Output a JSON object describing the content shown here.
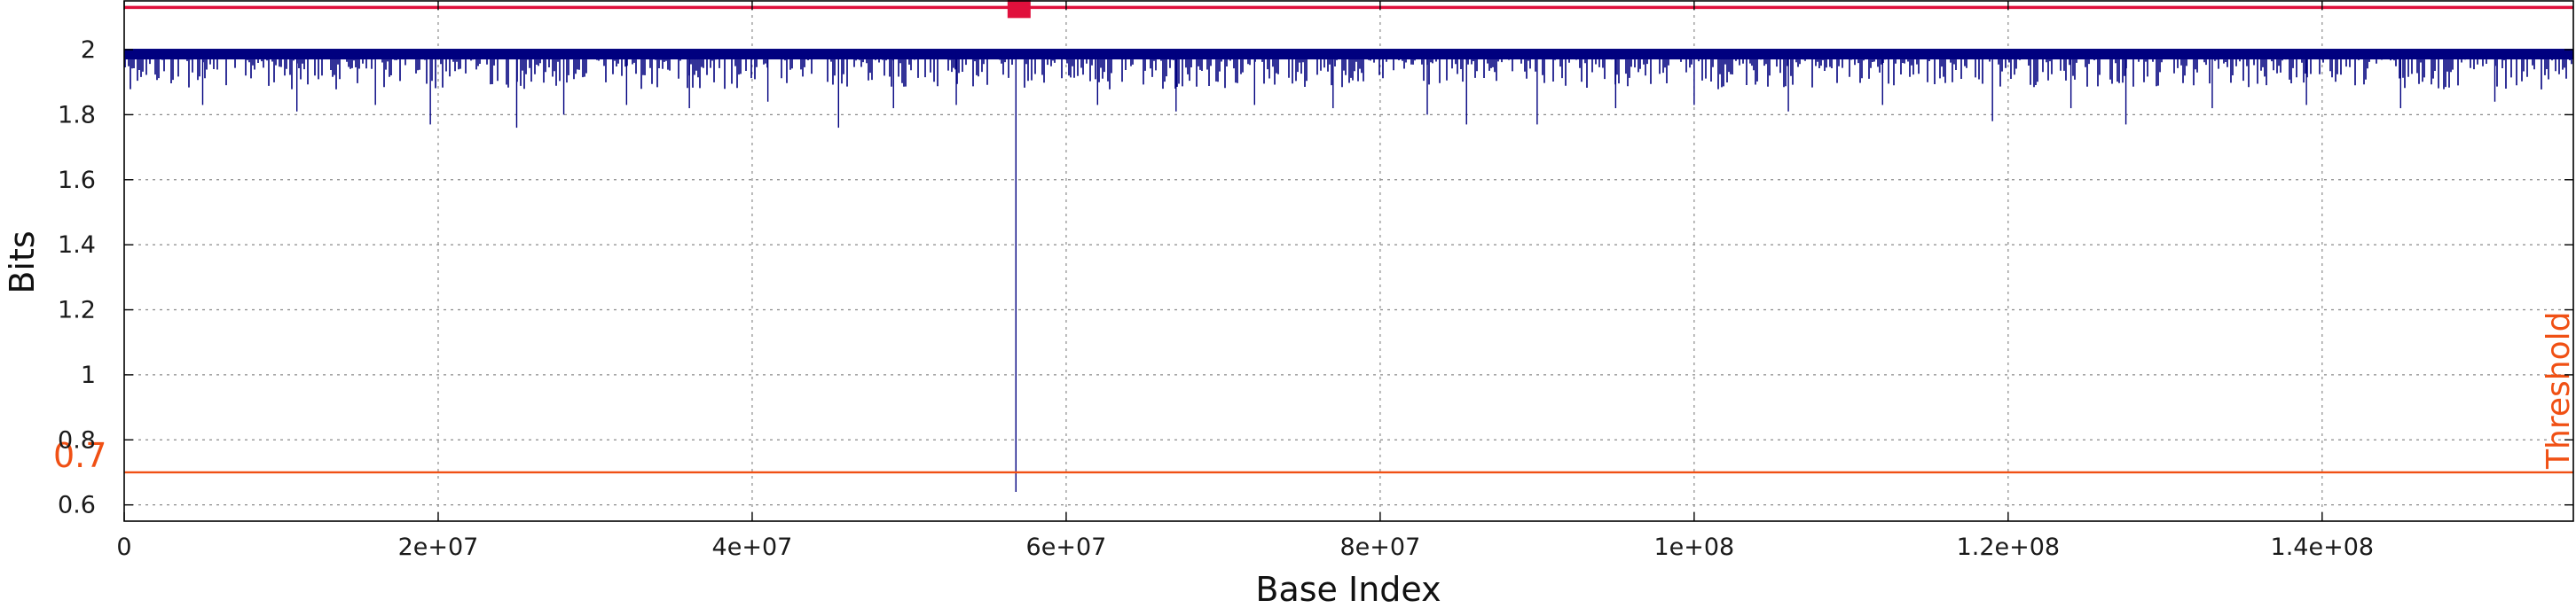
{
  "chart_data": {
    "type": "line",
    "title": "",
    "xlabel": "Base Index",
    "ylabel": "Bits",
    "xlim": [
      0,
      156000000
    ],
    "ylim": [
      0.55,
      2.15
    ],
    "grid": true,
    "x_ticks": [
      {
        "value": 0,
        "label": "0"
      },
      {
        "value": 20000000,
        "label": "2e+07"
      },
      {
        "value": 40000000,
        "label": "4e+07"
      },
      {
        "value": 60000000,
        "label": "6e+07"
      },
      {
        "value": 80000000,
        "label": "8e+07"
      },
      {
        "value": 100000000,
        "label": "1e+08"
      },
      {
        "value": 120000000,
        "label": "1.2e+08"
      },
      {
        "value": 140000000,
        "label": "1.4e+08"
      }
    ],
    "y_ticks": [
      {
        "value": 0.6,
        "label": "0.6"
      },
      {
        "value": 0.8,
        "label": "0.8"
      },
      {
        "value": 1.0,
        "label": "1"
      },
      {
        "value": 1.2,
        "label": "1.2"
      },
      {
        "value": 1.4,
        "label": "1.4"
      },
      {
        "value": 1.6,
        "label": "1.6"
      },
      {
        "value": 1.8,
        "label": "1.8"
      },
      {
        "value": 2.0,
        "label": "2"
      }
    ],
    "threshold": {
      "value": 0.7,
      "value_label": "0.7",
      "label": "Threshold",
      "color": "#f05014"
    },
    "top_line": {
      "value": 2.13,
      "color": "#e0103c"
    },
    "marker": {
      "x": 57000000,
      "y": 2.13,
      "color": "#e0103c"
    },
    "series": [
      {
        "color": "#00007f",
        "baseline_max": 2.0,
        "typical_min": 1.85,
        "dips": [
          {
            "x": 5000000,
            "y": 1.83
          },
          {
            "x": 11000000,
            "y": 1.81
          },
          {
            "x": 16000000,
            "y": 1.83
          },
          {
            "x": 19500000,
            "y": 1.77
          },
          {
            "x": 25000000,
            "y": 1.76
          },
          {
            "x": 28000000,
            "y": 1.8
          },
          {
            "x": 32000000,
            "y": 1.83
          },
          {
            "x": 36000000,
            "y": 1.82
          },
          {
            "x": 41000000,
            "y": 1.84
          },
          {
            "x": 45500000,
            "y": 1.76
          },
          {
            "x": 49000000,
            "y": 1.82
          },
          {
            "x": 53000000,
            "y": 1.83
          },
          {
            "x": 56800000,
            "y": 0.64
          },
          {
            "x": 62000000,
            "y": 1.83
          },
          {
            "x": 67000000,
            "y": 1.81
          },
          {
            "x": 72000000,
            "y": 1.83
          },
          {
            "x": 77000000,
            "y": 1.82
          },
          {
            "x": 83000000,
            "y": 1.8
          },
          {
            "x": 85500000,
            "y": 1.77
          },
          {
            "x": 90000000,
            "y": 1.77
          },
          {
            "x": 95000000,
            "y": 1.82
          },
          {
            "x": 100000000,
            "y": 1.83
          },
          {
            "x": 106000000,
            "y": 1.81
          },
          {
            "x": 112000000,
            "y": 1.83
          },
          {
            "x": 119000000,
            "y": 1.78
          },
          {
            "x": 124000000,
            "y": 1.82
          },
          {
            "x": 127500000,
            "y": 1.77
          },
          {
            "x": 133000000,
            "y": 1.82
          },
          {
            "x": 139000000,
            "y": 1.83
          },
          {
            "x": 145000000,
            "y": 1.82
          },
          {
            "x": 151000000,
            "y": 1.84
          }
        ]
      }
    ]
  }
}
